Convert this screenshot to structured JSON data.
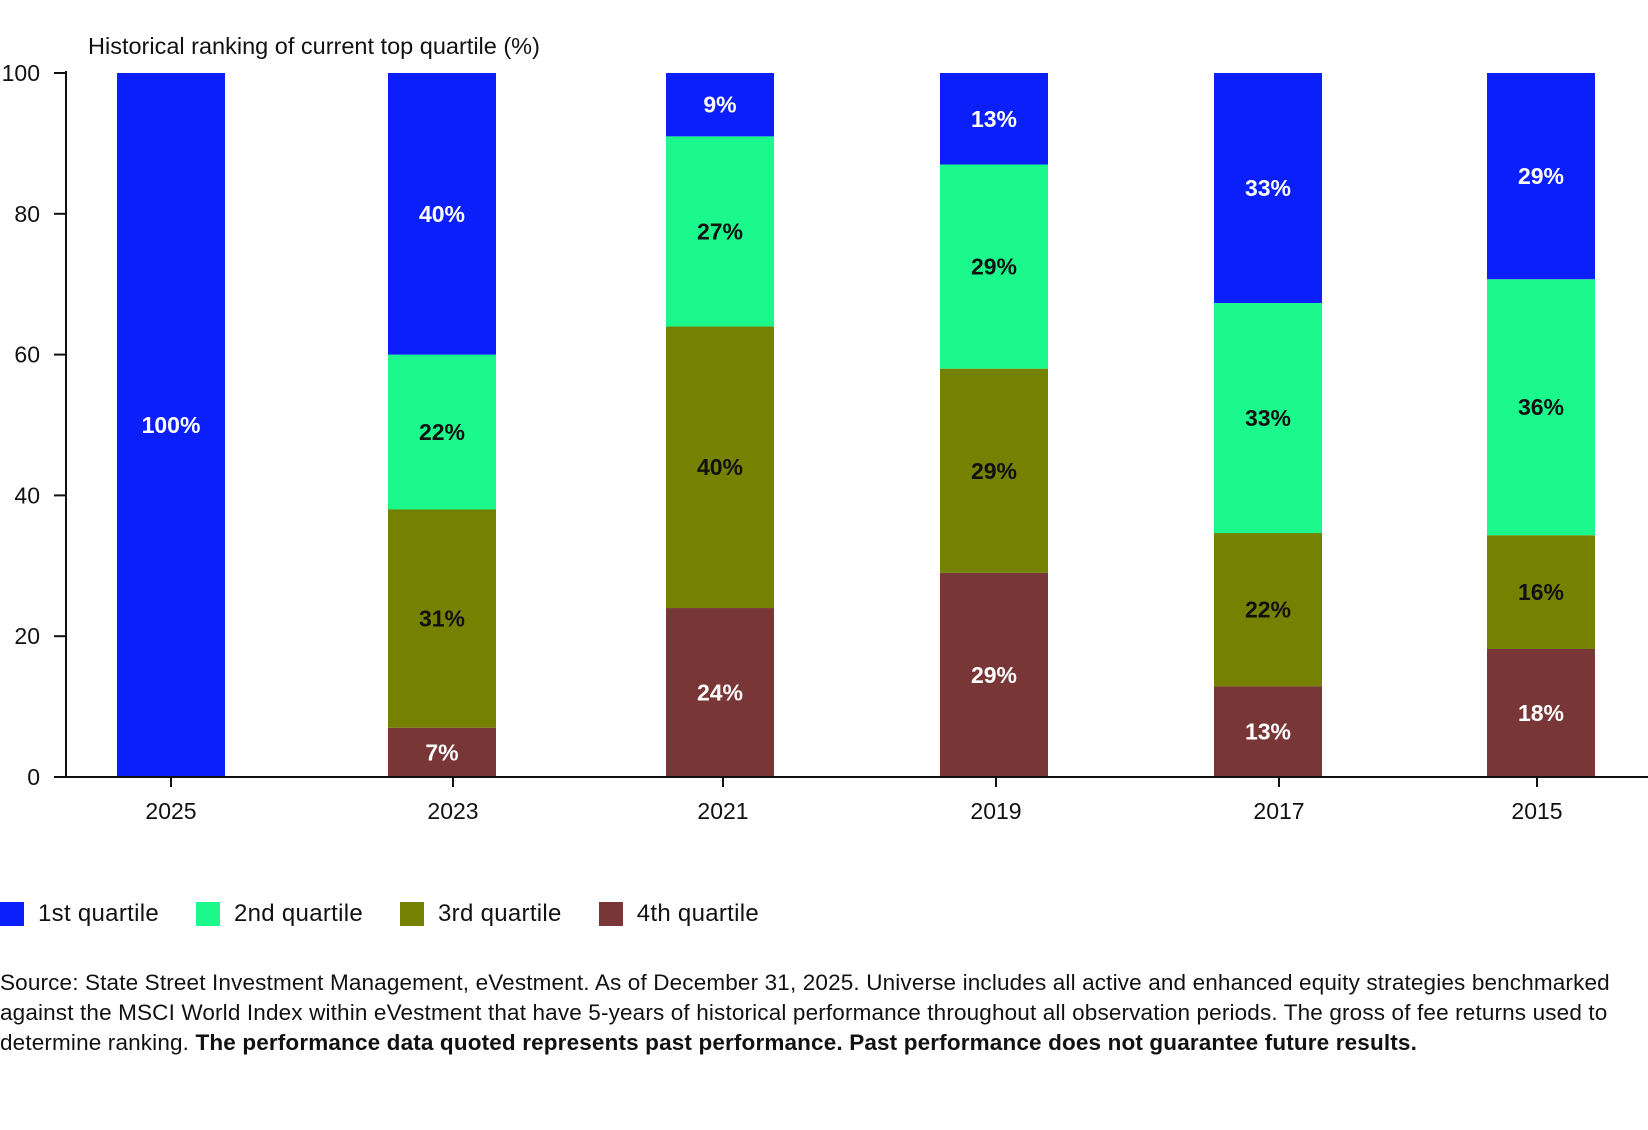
{
  "colors": {
    "q1": "#0a1ff9",
    "q2": "#1cf98c",
    "q3": "#758100",
    "q4": "#793636",
    "axis": "#111111"
  },
  "chart_data": {
    "type": "bar",
    "stacked": true,
    "title": "Historical ranking of current top quartile (%)",
    "xlabel": "",
    "ylabel": "",
    "ylim": [
      0,
      100
    ],
    "yticks": [
      "0",
      "20",
      "40",
      "60",
      "80",
      "100"
    ],
    "grid": false,
    "legend_position": "bottom-left",
    "categories": [
      "2025",
      "2023",
      "2021",
      "2019",
      "2017",
      "2015"
    ],
    "series": [
      {
        "name": "1st quartile",
        "values": [
          100,
          40,
          9,
          13,
          33,
          29
        ],
        "labels": [
          "100%",
          "40%",
          "9%",
          "13%",
          "33%",
          "29%"
        ]
      },
      {
        "name": "2nd quartile",
        "values": [
          0,
          22,
          27,
          29,
          33,
          36
        ],
        "labels": [
          "",
          "22%",
          "27%",
          "29%",
          "33%",
          "36%"
        ]
      },
      {
        "name": "3rd quartile",
        "values": [
          0,
          31,
          40,
          29,
          22,
          16
        ],
        "labels": [
          "",
          "31%",
          "40%",
          "29%",
          "22%",
          "16%"
        ]
      },
      {
        "name": "4th quartile",
        "values": [
          0,
          7,
          24,
          29,
          13,
          18
        ],
        "labels": [
          "",
          "7%",
          "24%",
          "29%",
          "13%",
          "18%"
        ]
      }
    ]
  },
  "legend": {
    "items": [
      "1st quartile",
      "2nd quartile",
      "3rd quartile",
      "4th quartile"
    ]
  },
  "source": {
    "normal": "Source: State Street Investment Management, eVestment. As of December 31, 2025. Universe includes all active and enhanced equity strategies benchmarked against the MSCI World Index within eVestment that have 5-years of historical performance throughout all observation periods. The gross of fee returns used to determine ranking.",
    "bold": "The performance data quoted represents past performance. Past performance does not guarantee future results."
  }
}
